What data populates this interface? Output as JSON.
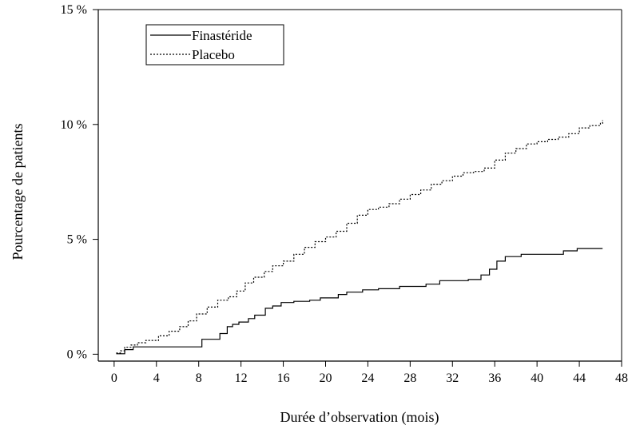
{
  "chart_data": {
    "type": "line",
    "xlabel": "Durée d’observation (mois)",
    "ylabel": "Pourcentage de patients",
    "xlim": [
      -1.5,
      48
    ],
    "ylim": [
      -0.3,
      15
    ],
    "x_ticks": [
      0,
      4,
      8,
      12,
      16,
      20,
      24,
      28,
      32,
      36,
      40,
      44,
      48
    ],
    "x_tick_labels": [
      "0",
      "4",
      "8",
      "12",
      "16",
      "20",
      "24",
      "28",
      "32",
      "36",
      "40",
      "44",
      "48"
    ],
    "y_ticks": [
      0,
      5,
      10,
      15
    ],
    "y_tick_labels": [
      "0 %",
      "5 %",
      "10 %",
      "15 %"
    ],
    "grid": false,
    "legend_position": "top-left",
    "series": [
      {
        "name": "Finastéride",
        "style": "solid",
        "color": "#000000",
        "x": [
          0.2,
          0.8,
          1.0,
          1.5,
          1.8,
          7.8,
          8.3,
          9.3,
          10.0,
          10.7,
          11.2,
          11.8,
          12.7,
          13.3,
          14.3,
          15.0,
          15.8,
          17.0,
          18.5,
          19.5,
          21.2,
          22.0,
          23.5,
          25.0,
          27.0,
          29.5,
          30.8,
          33.5,
          34.7,
          35.5,
          36.2,
          37.0,
          38.5,
          39.5,
          42.5,
          43.2,
          43.8,
          46.2
        ],
        "y": [
          0.02,
          0.02,
          0.2,
          0.2,
          0.32,
          0.32,
          0.65,
          0.65,
          0.9,
          1.2,
          1.3,
          1.4,
          1.55,
          1.7,
          2.0,
          2.1,
          2.25,
          2.3,
          2.35,
          2.45,
          2.6,
          2.7,
          2.8,
          2.85,
          2.95,
          3.05,
          3.2,
          3.25,
          3.45,
          3.7,
          4.05,
          4.25,
          4.35,
          4.35,
          4.5,
          4.5,
          4.6,
          4.6
        ]
      },
      {
        "name": "Placebo",
        "style": "dashed",
        "color": "#000000",
        "x": [
          0.2,
          0.6,
          1.0,
          1.6,
          2.2,
          3.0,
          4.2,
          5.2,
          6.2,
          7.0,
          7.8,
          8.8,
          9.8,
          10.8,
          11.6,
          12.4,
          13.2,
          14.2,
          15.0,
          16.0,
          17.0,
          18.0,
          19.0,
          20.0,
          21.0,
          22.0,
          23.0,
          24.0,
          25.0,
          26.0,
          27.0,
          28.0,
          29.0,
          30.0,
          31.0,
          32.0,
          33.0,
          34.0,
          35.0,
          36.0,
          37.0,
          38.0,
          39.0,
          40.0,
          41.0,
          42.0,
          43.0,
          44.0,
          45.0,
          46.0,
          46.2
        ],
        "y": [
          0.05,
          0.15,
          0.3,
          0.4,
          0.5,
          0.6,
          0.8,
          1.0,
          1.2,
          1.45,
          1.75,
          2.05,
          2.35,
          2.5,
          2.75,
          3.1,
          3.35,
          3.6,
          3.85,
          4.05,
          4.35,
          4.65,
          4.9,
          5.1,
          5.35,
          5.7,
          6.05,
          6.3,
          6.4,
          6.55,
          6.75,
          6.95,
          7.15,
          7.4,
          7.55,
          7.75,
          7.9,
          7.95,
          8.1,
          8.45,
          8.75,
          8.95,
          9.15,
          9.25,
          9.35,
          9.45,
          9.6,
          9.85,
          9.95,
          10.05,
          10.2
        ]
      }
    ]
  }
}
